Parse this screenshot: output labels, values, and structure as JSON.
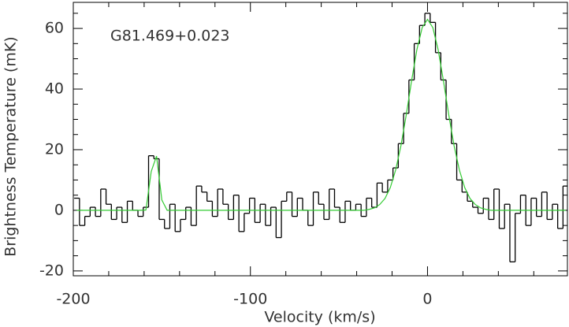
{
  "chart_data": {
    "type": "spectrum",
    "annotation": "G81.469+0.023",
    "xlabel": "Velocity (km/s)",
    "ylabel": "Brightness Temperature (mK)",
    "x": [
      -198,
      -195,
      -192,
      -189,
      -186,
      -183,
      -180,
      -177,
      -174,
      -171,
      -168,
      -165,
      -162,
      -159,
      -156,
      -153,
      -150,
      -147,
      -144,
      -141,
      -138,
      -135,
      -132,
      -129,
      -126,
      -123,
      -120,
      -117,
      -114,
      -111,
      -108,
      -105,
      -102,
      -99,
      -96,
      -93,
      -90,
      -87,
      -84,
      -81,
      -78,
      -75,
      -72,
      -69,
      -66,
      -63,
      -60,
      -57,
      -54,
      -51,
      -48,
      -45,
      -42,
      -39,
      -36,
      -33,
      -30,
      -27,
      -24,
      -21,
      -18,
      -15,
      -12,
      -9,
      -6,
      -3,
      0,
      3,
      6,
      9,
      12,
      15,
      18,
      21,
      24,
      27,
      30,
      33,
      36,
      39,
      42,
      45,
      48,
      51,
      54,
      57,
      60,
      63,
      66,
      69,
      72,
      75,
      78
    ],
    "series": [
      {
        "style": "step",
        "color": "#000000",
        "values": [
          4,
          -5,
          -2,
          1,
          -2,
          7,
          2,
          -3,
          1,
          -4,
          3,
          0,
          -2,
          1,
          18,
          17,
          -3,
          -6,
          2,
          -7,
          -3,
          1,
          -5,
          8,
          6,
          3,
          -2,
          7,
          2,
          -3,
          5,
          -7,
          -1,
          4,
          -4,
          2,
          -5,
          1,
          -9,
          3,
          6,
          -2,
          4,
          0,
          -5,
          6,
          2,
          -3,
          7,
          1,
          -4,
          3,
          0,
          2,
          -2,
          4,
          1,
          9,
          6,
          10,
          14,
          22,
          32,
          43,
          55,
          61,
          65,
          62,
          52,
          43,
          30,
          22,
          10,
          6,
          3,
          1,
          -1,
          4,
          -3,
          7,
          -6,
          2,
          -17,
          -1,
          5,
          -5,
          4,
          -2,
          6,
          -3,
          2,
          -6,
          8
        ]
      },
      {
        "style": "line",
        "color": "#33cc33",
        "values": [
          0,
          0,
          0,
          0,
          0,
          0,
          0,
          0,
          0,
          0,
          0,
          0,
          0,
          0.1,
          12.8,
          17.9,
          3.4,
          0,
          0,
          0,
          0,
          0,
          0,
          0,
          0,
          0,
          0,
          0,
          0,
          0,
          0,
          0,
          0,
          0,
          0,
          0,
          0,
          0,
          0,
          0,
          0,
          0,
          0,
          0,
          0,
          0,
          0,
          0,
          0,
          0,
          0,
          0,
          0,
          0,
          0,
          0.3,
          0.8,
          1.9,
          3.9,
          7.5,
          13.3,
          21.3,
          31.5,
          42.7,
          53.0,
          60.3,
          63,
          60.3,
          53.0,
          42.7,
          31.5,
          21.3,
          13.3,
          7.5,
          3.9,
          1.9,
          0.8,
          0.3,
          0,
          0,
          0,
          0,
          0,
          0,
          0,
          0,
          0,
          0,
          0,
          0,
          0,
          0,
          0
        ]
      }
    ],
    "xlim": [
      -200,
      79
    ],
    "ylim": [
      -21.6,
      68.6
    ],
    "xticks": [
      -200,
      -100,
      0
    ],
    "yticks": [
      -20,
      0,
      20,
      40,
      60
    ],
    "xminorticks": [
      -180,
      -160,
      -140,
      -120,
      -80,
      -60,
      -40,
      -20,
      20,
      40,
      60
    ],
    "yminorticks": [
      -15,
      -10,
      -5,
      5,
      10,
      15,
      25,
      30,
      35,
      45,
      50,
      55,
      65
    ]
  }
}
